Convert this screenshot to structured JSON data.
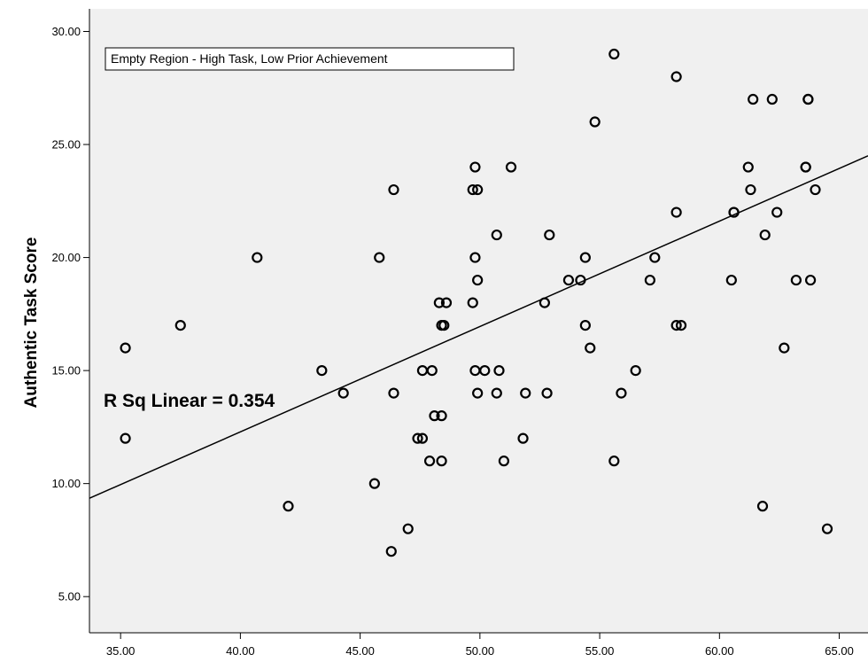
{
  "chart_data": {
    "type": "scatter",
    "title": "",
    "xlabel": "",
    "ylabel": "Authentic Task Score",
    "xlim": [
      33.7,
      66.2
    ],
    "ylim": [
      3.4,
      31.0
    ],
    "x_ticks": [
      35,
      40,
      45,
      50,
      55,
      60,
      65
    ],
    "x_tick_labels": [
      "35.00",
      "40.00",
      "45.00",
      "50.00",
      "55.00",
      "60.00",
      "65.00"
    ],
    "y_ticks": [
      5,
      10,
      15,
      20,
      25,
      30
    ],
    "y_tick_labels": [
      "5.00",
      "10.00",
      "15.00",
      "20.00",
      "25.00",
      "30.00"
    ],
    "grid": false,
    "plot_background": "#f0f0f0",
    "point_color": "#000000",
    "annotation_box": "Empty Region - High Task, Low Prior Achievement",
    "fit_label": "R Sq Linear = 0.354",
    "fit_line": {
      "x": [
        33.7,
        66.2
      ],
      "y": [
        9.35,
        24.5
      ]
    },
    "points": [
      [
        35.2,
        16
      ],
      [
        35.2,
        12
      ],
      [
        37.5,
        17
      ],
      [
        40.7,
        20
      ],
      [
        42.0,
        9
      ],
      [
        43.4,
        15
      ],
      [
        44.3,
        14
      ],
      [
        45.6,
        10
      ],
      [
        45.8,
        20
      ],
      [
        46.4,
        23
      ],
      [
        46.3,
        7
      ],
      [
        46.4,
        14
      ],
      [
        47.0,
        8
      ],
      [
        47.4,
        12
      ],
      [
        47.6,
        12
      ],
      [
        47.6,
        15
      ],
      [
        48.0,
        15
      ],
      [
        47.9,
        11
      ],
      [
        48.1,
        13
      ],
      [
        48.3,
        18
      ],
      [
        48.4,
        17
      ],
      [
        48.5,
        17
      ],
      [
        48.6,
        18
      ],
      [
        48.4,
        13
      ],
      [
        48.4,
        11
      ],
      [
        49.7,
        23
      ],
      [
        49.9,
        23
      ],
      [
        49.8,
        24
      ],
      [
        49.8,
        20
      ],
      [
        49.7,
        18
      ],
      [
        49.9,
        19
      ],
      [
        49.8,
        15
      ],
      [
        49.9,
        14
      ],
      [
        50.2,
        15
      ],
      [
        50.8,
        15
      ],
      [
        50.7,
        14
      ],
      [
        50.7,
        21
      ],
      [
        51.0,
        11
      ],
      [
        51.3,
        24
      ],
      [
        51.8,
        12
      ],
      [
        51.9,
        14
      ],
      [
        52.7,
        18
      ],
      [
        52.8,
        14
      ],
      [
        52.9,
        21
      ],
      [
        53.7,
        19
      ],
      [
        54.2,
        19
      ],
      [
        54.4,
        20
      ],
      [
        54.4,
        17
      ],
      [
        54.6,
        16
      ],
      [
        54.8,
        26
      ],
      [
        55.6,
        29
      ],
      [
        55.6,
        11
      ],
      [
        55.9,
        14
      ],
      [
        56.5,
        15
      ],
      [
        57.1,
        19
      ],
      [
        57.3,
        20
      ],
      [
        58.2,
        28
      ],
      [
        58.2,
        22
      ],
      [
        58.2,
        17
      ],
      [
        58.4,
        17
      ],
      [
        60.5,
        19
      ],
      [
        60.6,
        22
      ],
      [
        60.6,
        22
      ],
      [
        61.2,
        24
      ],
      [
        61.3,
        23
      ],
      [
        61.4,
        27
      ],
      [
        61.8,
        9
      ],
      [
        61.9,
        21
      ],
      [
        62.2,
        27
      ],
      [
        62.4,
        22
      ],
      [
        62.7,
        16
      ],
      [
        63.2,
        19
      ],
      [
        63.6,
        24
      ],
      [
        63.6,
        24
      ],
      [
        63.7,
        27
      ],
      [
        63.7,
        27
      ],
      [
        63.8,
        19
      ],
      [
        64.0,
        23
      ],
      [
        64.5,
        8
      ]
    ]
  }
}
